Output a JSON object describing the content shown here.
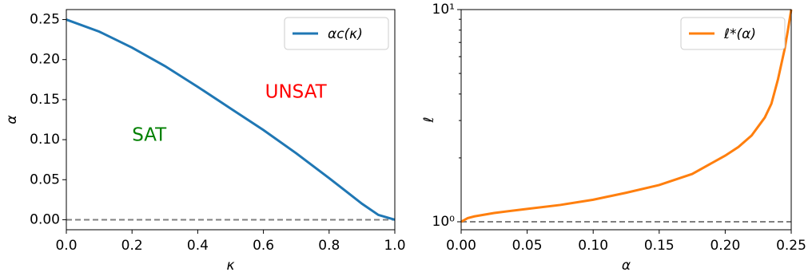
{
  "chart_data": [
    {
      "type": "line",
      "xlabel": "κ",
      "ylabel": "α",
      "x": [
        0,
        0.1,
        0.2,
        0.3,
        0.4,
        0.5,
        0.6,
        0.7,
        0.8,
        0.85,
        0.9,
        0.95,
        1.0
      ],
      "series": [
        {
          "name": "αc(κ)",
          "color": "#1f77b4",
          "values": [
            0.25,
            0.235,
            0.215,
            0.192,
            0.166,
            0.139,
            0.112,
            0.083,
            0.052,
            0.036,
            0.02,
            0.006,
            0.0
          ]
        }
      ],
      "hline": 0,
      "xlim": [
        0,
        1
      ],
      "ylim": [
        -0.0125,
        0.2625
      ],
      "xticks": [
        {
          "value": 0,
          "label": "0.0"
        },
        0.2,
        0.4,
        0.6,
        0.8,
        {
          "value": 1,
          "label": "1.0"
        }
      ],
      "yticks": [
        {
          "value": 0,
          "label": "0.00"
        },
        0.05,
        {
          "value": 0.1,
          "label": "0.10"
        },
        0.15,
        {
          "value": 0.2,
          "label": "0.20"
        },
        0.25
      ],
      "annotations": [
        {
          "text": "SAT",
          "color": "green"
        },
        {
          "text": "UNSAT",
          "color": "red"
        }
      ],
      "legend": "upper right",
      "log_y": false
    },
    {
      "type": "line",
      "xlabel": "α",
      "ylabel": "ℓ",
      "x": [
        0,
        0.005,
        0.01,
        0.025,
        0.05,
        0.075,
        0.1,
        0.125,
        0.15,
        0.175,
        0.2,
        0.21,
        0.22,
        0.23,
        0.235,
        0.24,
        0.245,
        0.2475,
        0.25
      ],
      "series": [
        {
          "name": "ℓ*(α)",
          "color": "#ff7f0e",
          "values": [
            1,
            1.04,
            1.06,
            1.1,
            1.15,
            1.2,
            1.27,
            1.37,
            1.49,
            1.68,
            2.05,
            2.25,
            2.55,
            3.1,
            3.6,
            4.7,
            6.5,
            8,
            10
          ]
        }
      ],
      "hline": 1,
      "xlim": [
        0,
        0.25
      ],
      "ylim": [
        0.917,
        10
      ],
      "xticks": [
        {
          "value": 0,
          "label": "0.00"
        },
        0.05,
        {
          "value": 0.1,
          "label": "0.10"
        },
        0.15,
        {
          "value": 0.2,
          "label": "0.20"
        },
        0.25
      ],
      "yticks": [
        {
          "value": 1,
          "label": "10⁰"
        },
        {
          "value": 10,
          "label": "10¹"
        }
      ],
      "legend": "upper right",
      "log_y": true
    }
  ]
}
